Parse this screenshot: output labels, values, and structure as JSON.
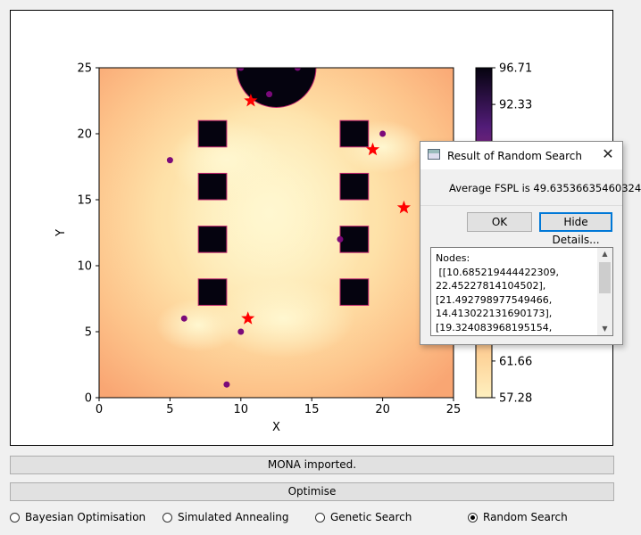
{
  "plot": {
    "x_label": "X",
    "y_label": "Y",
    "x_ticks": [
      "0",
      "5",
      "10",
      "15",
      "20",
      "25"
    ],
    "y_ticks": [
      "0",
      "5",
      "10",
      "15",
      "20",
      "25"
    ],
    "colorbar_ticks": [
      "96.71",
      "92.33",
      "61.66",
      "57.28"
    ],
    "colormap": {
      "low": "#fef0c0",
      "mid": "#fbb37e",
      "high": "#000004"
    }
  },
  "chart_data": {
    "type": "scatter",
    "xlim": [
      0,
      25
    ],
    "ylim": [
      0,
      25
    ],
    "xlabel": "X",
    "ylabel": "Y",
    "colorbar_range": [
      57.28,
      96.71
    ],
    "obstacles": [
      {
        "x": [
          7,
          9
        ],
        "y": [
          19,
          21
        ]
      },
      {
        "x": [
          7,
          9
        ],
        "y": [
          15,
          17
        ]
      },
      {
        "x": [
          7,
          9
        ],
        "y": [
          11,
          13
        ]
      },
      {
        "x": [
          7,
          9
        ],
        "y": [
          7,
          9
        ]
      },
      {
        "x": [
          17,
          19
        ],
        "y": [
          19,
          21
        ]
      },
      {
        "x": [
          17,
          19
        ],
        "y": [
          15,
          17
        ]
      },
      {
        "x": [
          17,
          19
        ],
        "y": [
          11,
          13
        ]
      },
      {
        "x": [
          17,
          19
        ],
        "y": [
          7,
          9
        ]
      }
    ],
    "circle_obstacle": {
      "cx": 12.5,
      "cy": 25,
      "r": 2.8
    },
    "series": [
      {
        "marker": "dot",
        "color": "#7b0a7a",
        "x": [
          10,
          14,
          12,
          5,
          20,
          17,
          6,
          10,
          9
        ],
        "y": [
          25,
          25,
          23,
          18,
          20,
          12,
          6,
          5,
          1
        ]
      },
      {
        "marker": "star",
        "color": "#ff0000",
        "x": [
          10.7,
          19.3,
          21.5,
          10.5
        ],
        "y": [
          22.5,
          18.8,
          14.4,
          6.0
        ]
      }
    ]
  },
  "status": {
    "message": "MONA imported."
  },
  "optimise_label": "Optimise",
  "methods": [
    {
      "label": "Bayesian Optimisation",
      "checked": false
    },
    {
      "label": "Simulated Annealing",
      "checked": false
    },
    {
      "label": "Genetic Search",
      "checked": false
    },
    {
      "label": "Random Search",
      "checked": true
    }
  ],
  "dialog": {
    "title": "Result of Random Search",
    "message": "Average FSPL is 49.63536635460324",
    "ok_label": "OK",
    "hide_details_label": "Hide Details...",
    "details": "Nodes:\n [[10.685219444422309,\n22.45227814104502],\n[21.492798977549466,\n14.413022131690173],\n[19.324083968195154,"
  }
}
